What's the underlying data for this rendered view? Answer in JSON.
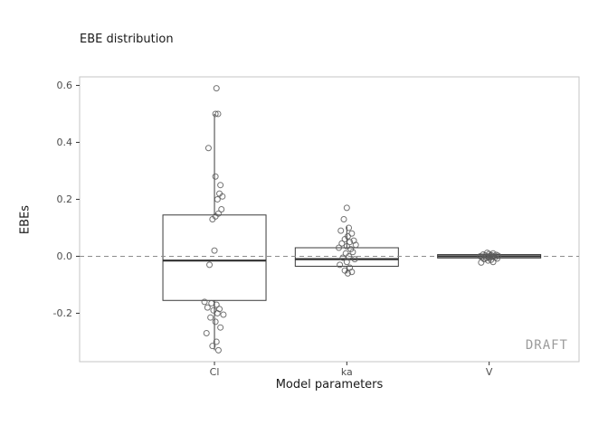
{
  "chart_data": {
    "type": "boxplot",
    "title": "EBE distribution",
    "xlabel": "Model parameters",
    "ylabel": "EBEs",
    "watermark": "DRAFT",
    "grid": false,
    "legend": "none",
    "ylim": [
      -0.37,
      0.63
    ],
    "yticks": [
      {
        "value": 0.6,
        "label": "0.6"
      },
      {
        "value": 0.4,
        "label": "0.4"
      },
      {
        "value": 0.2,
        "label": "0.2"
      },
      {
        "value": 0.0,
        "label": "0.0"
      },
      {
        "value": -0.2,
        "label": "-0.2"
      }
    ],
    "reference_line": {
      "y": 0.0,
      "style": "dashed"
    },
    "categories": [
      "Cl",
      "ka",
      "V"
    ],
    "groups": [
      {
        "category": "Cl",
        "box": {
          "q1": -0.155,
          "median": -0.015,
          "q3": 0.145,
          "whisker_low": -0.33,
          "whisker_high": 0.5
        },
        "points": [
          [
            0.1,
            0.59
          ],
          [
            0.05,
            0.5
          ],
          [
            0.18,
            0.5
          ],
          [
            -0.3,
            0.38
          ],
          [
            0.05,
            0.28
          ],
          [
            0.3,
            0.25
          ],
          [
            0.25,
            0.22
          ],
          [
            0.4,
            0.21
          ],
          [
            0.15,
            0.2
          ],
          [
            0.35,
            0.165
          ],
          [
            0.2,
            0.15
          ],
          [
            0.05,
            0.14
          ],
          [
            -0.1,
            0.13
          ],
          [
            0.0,
            0.02
          ],
          [
            -0.25,
            -0.03
          ],
          [
            -0.5,
            -0.16
          ],
          [
            -0.15,
            -0.165
          ],
          [
            0.1,
            -0.17
          ],
          [
            -0.35,
            -0.18
          ],
          [
            0.25,
            -0.185
          ],
          [
            -0.05,
            -0.19
          ],
          [
            0.15,
            -0.2
          ],
          [
            0.45,
            -0.205
          ],
          [
            -0.2,
            -0.215
          ],
          [
            0.05,
            -0.23
          ],
          [
            0.3,
            -0.25
          ],
          [
            -0.4,
            -0.27
          ],
          [
            0.1,
            -0.3
          ],
          [
            -0.1,
            -0.315
          ],
          [
            0.2,
            -0.33
          ]
        ]
      },
      {
        "category": "ka",
        "box": {
          "q1": -0.035,
          "median": -0.01,
          "q3": 0.03,
          "whisker_low": -0.06,
          "whisker_high": 0.105
        },
        "points": [
          [
            0.0,
            0.17
          ],
          [
            -0.15,
            0.13
          ],
          [
            0.1,
            0.1
          ],
          [
            -0.3,
            0.09
          ],
          [
            0.25,
            0.08
          ],
          [
            0.05,
            0.07
          ],
          [
            -0.1,
            0.06
          ],
          [
            0.35,
            0.055
          ],
          [
            0.15,
            0.05
          ],
          [
            -0.25,
            0.045
          ],
          [
            0.45,
            0.04
          ],
          [
            0.0,
            0.035
          ],
          [
            -0.4,
            0.03
          ],
          [
            0.2,
            0.025
          ],
          [
            0.3,
            0.015
          ],
          [
            -0.05,
            0.01
          ],
          [
            0.1,
            0.0
          ],
          [
            -0.2,
            -0.005
          ],
          [
            0.4,
            -0.01
          ],
          [
            0.0,
            -0.02
          ],
          [
            -0.35,
            -0.03
          ],
          [
            0.15,
            -0.04
          ],
          [
            -0.1,
            -0.05
          ],
          [
            0.25,
            -0.055
          ],
          [
            0.05,
            -0.06
          ]
        ]
      },
      {
        "category": "V",
        "box": {
          "q1": -0.006,
          "median": 0.0,
          "q3": 0.006,
          "whisker_low": -0.015,
          "whisker_high": 0.012
        },
        "points": [
          [
            -0.1,
            0.012
          ],
          [
            0.2,
            0.01
          ],
          [
            0.0,
            0.008
          ],
          [
            -0.3,
            0.006
          ],
          [
            0.35,
            0.005
          ],
          [
            0.1,
            0.004
          ],
          [
            -0.2,
            0.003
          ],
          [
            0.45,
            0.002
          ],
          [
            0.05,
            0.001
          ],
          [
            -0.45,
            0.0
          ],
          [
            0.25,
            0.0
          ],
          [
            -0.05,
            -0.001
          ],
          [
            0.15,
            -0.002
          ],
          [
            -0.35,
            -0.003
          ],
          [
            0.3,
            -0.004
          ],
          [
            0.0,
            -0.005
          ],
          [
            -0.15,
            -0.006
          ],
          [
            0.4,
            -0.008
          ],
          [
            -0.25,
            -0.01
          ],
          [
            0.1,
            -0.012
          ],
          [
            -0.05,
            -0.015
          ],
          [
            0.2,
            -0.02
          ],
          [
            -0.4,
            -0.022
          ]
        ]
      }
    ],
    "colors": {
      "box_stroke": "#3b3b3b",
      "median": "#2f2f2f",
      "point_stroke": "#5a5a5a",
      "reference_line": "#8c8c8c",
      "panel_border": "#c6c6c6",
      "tick_mark": "#333333",
      "tick_text": "#4d4d4d",
      "watermark": "#9b9b9b"
    }
  }
}
